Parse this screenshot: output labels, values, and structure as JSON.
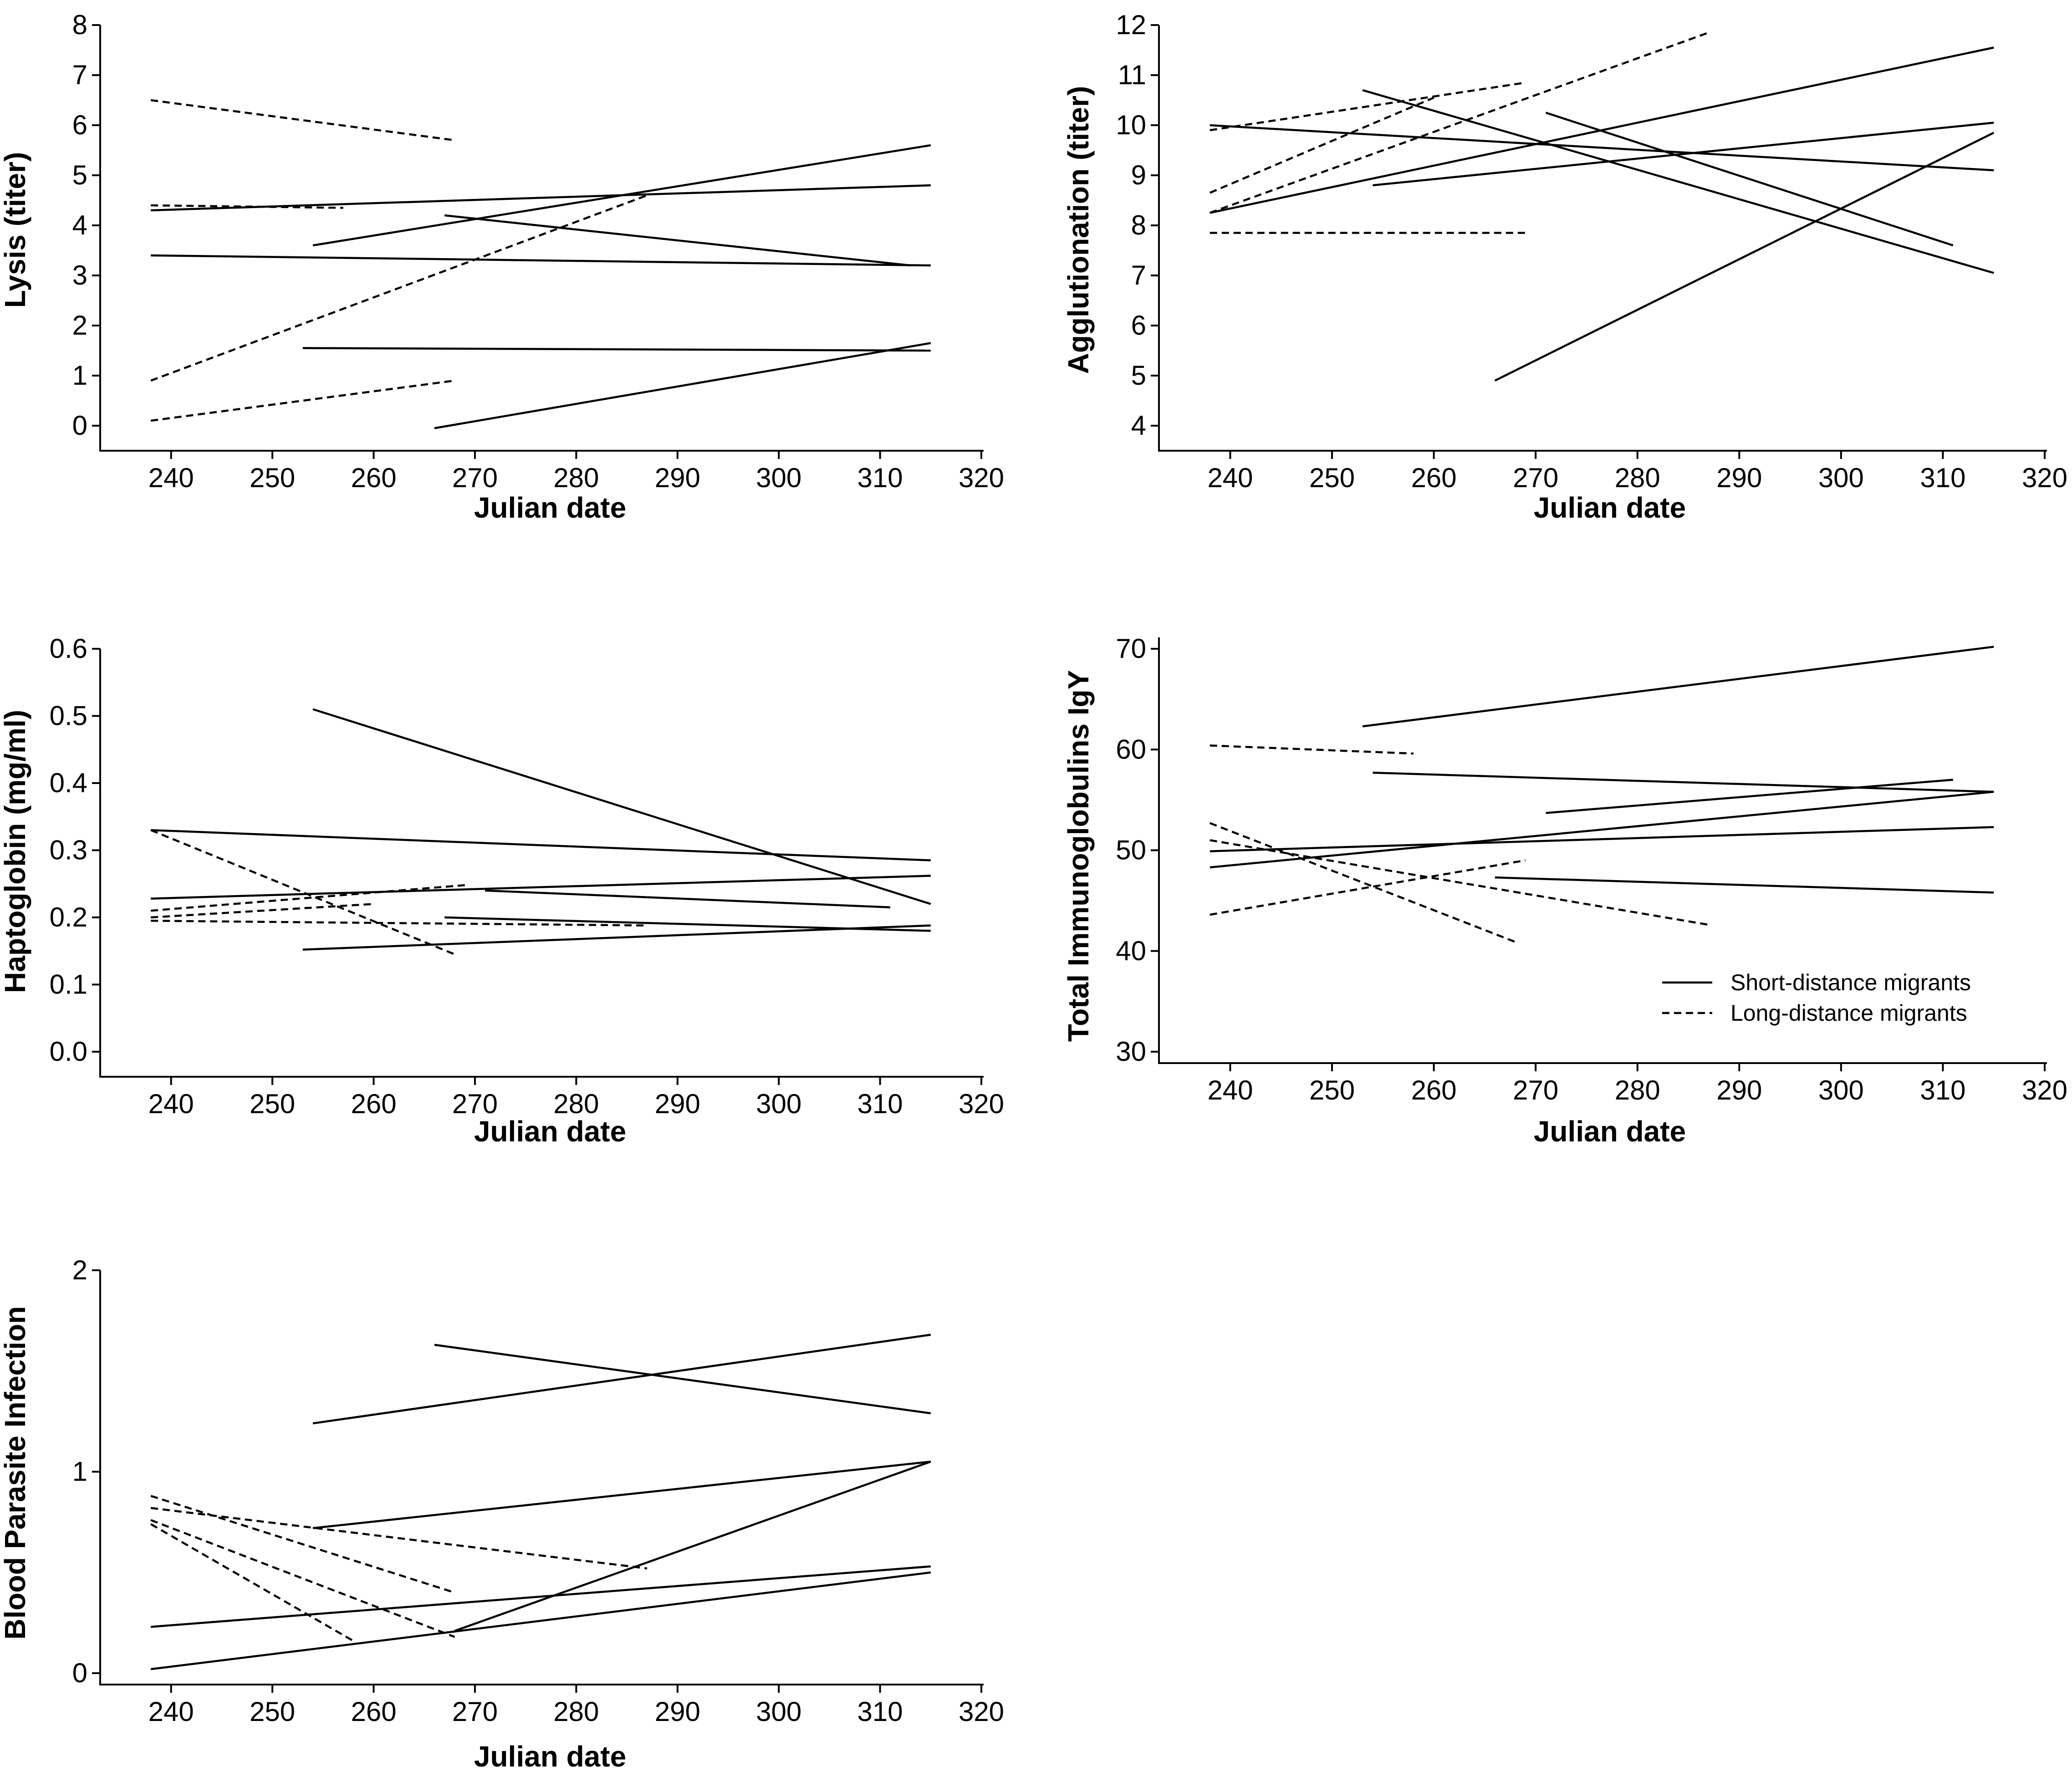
{
  "legend": {
    "solid_label": "Short-distance migrants",
    "dashed_label": "Long-distance migrants"
  },
  "chart_data": [
    {
      "type": "line",
      "id": "lysis",
      "xlabel": "Julian date",
      "ylabel": "Lysis (titer)",
      "xlim": [
        233,
        320
      ],
      "ylim": [
        0,
        8
      ],
      "xticks": [
        240,
        250,
        260,
        270,
        280,
        290,
        300,
        310,
        320
      ],
      "yticks": [
        0,
        1,
        2,
        3,
        4,
        5,
        6,
        7,
        8
      ],
      "ytick_labels": [
        "0",
        "1",
        "2",
        "3",
        "4",
        "5",
        "6",
        "7",
        "8"
      ],
      "series": [
        {
          "name": "Short-distance migrants",
          "style": "solid",
          "x": [
            238,
            315
          ],
          "y": [
            4.3,
            4.8
          ]
        },
        {
          "name": "Short-distance migrants",
          "style": "solid",
          "x": [
            238,
            315
          ],
          "y": [
            3.4,
            3.2
          ]
        },
        {
          "name": "Short-distance migrants",
          "style": "solid",
          "x": [
            254,
            315
          ],
          "y": [
            3.6,
            5.6
          ]
        },
        {
          "name": "Short-distance migrants",
          "style": "solid",
          "x": [
            267,
            313
          ],
          "y": [
            4.2,
            3.2
          ]
        },
        {
          "name": "Short-distance migrants",
          "style": "solid",
          "x": [
            253,
            315
          ],
          "y": [
            1.55,
            1.5
          ]
        },
        {
          "name": "Short-distance migrants",
          "style": "solid",
          "x": [
            266,
            315
          ],
          "y": [
            -0.05,
            1.65
          ]
        },
        {
          "name": "Long-distance migrants",
          "style": "dashed",
          "x": [
            238,
            268
          ],
          "y": [
            6.5,
            5.7
          ]
        },
        {
          "name": "Long-distance migrants",
          "style": "dashed",
          "x": [
            238,
            257
          ],
          "y": [
            4.4,
            4.35
          ]
        },
        {
          "name": "Long-distance migrants",
          "style": "dashed",
          "x": [
            238,
            287
          ],
          "y": [
            0.9,
            4.6
          ]
        },
        {
          "name": "Long-distance migrants",
          "style": "dashed",
          "x": [
            238,
            268
          ],
          "y": [
            0.1,
            0.9
          ]
        }
      ]
    },
    {
      "type": "line",
      "id": "agglutination",
      "xlabel": "Julian date",
      "ylabel": "Agglutionation (titer)",
      "xlim": [
        233,
        320
      ],
      "ylim": [
        4,
        12
      ],
      "xticks": [
        240,
        250,
        260,
        270,
        280,
        290,
        300,
        310,
        320
      ],
      "yticks": [
        4,
        5,
        6,
        7,
        8,
        9,
        10,
        11,
        12
      ],
      "ytick_labels": [
        "4",
        "5",
        "6",
        "7",
        "8",
        "9",
        "10",
        "11",
        "12"
      ],
      "series": [
        {
          "name": "Short-distance migrants",
          "style": "solid",
          "x": [
            238,
            315
          ],
          "y": [
            10.0,
            9.1
          ]
        },
        {
          "name": "Short-distance migrants",
          "style": "solid",
          "x": [
            238,
            315
          ],
          "y": [
            8.25,
            11.55
          ]
        },
        {
          "name": "Short-distance migrants",
          "style": "solid",
          "x": [
            254,
            315
          ],
          "y": [
            8.8,
            10.05
          ]
        },
        {
          "name": "Short-distance migrants",
          "style": "solid",
          "x": [
            253,
            315
          ],
          "y": [
            10.7,
            7.05
          ]
        },
        {
          "name": "Short-distance migrants",
          "style": "solid",
          "x": [
            271,
            311
          ],
          "y": [
            10.25,
            7.6
          ]
        },
        {
          "name": "Short-distance migrants",
          "style": "solid",
          "x": [
            266,
            315
          ],
          "y": [
            4.9,
            9.85
          ]
        },
        {
          "name": "Long-distance migrants",
          "style": "dashed",
          "x": [
            238,
            287
          ],
          "y": [
            8.25,
            11.85
          ]
        },
        {
          "name": "Long-distance migrants",
          "style": "dashed",
          "x": [
            238,
            269
          ],
          "y": [
            9.9,
            10.85
          ]
        },
        {
          "name": "Long-distance migrants",
          "style": "dashed",
          "x": [
            238,
            260
          ],
          "y": [
            8.65,
            10.55
          ]
        },
        {
          "name": "Long-distance migrants",
          "style": "dashed",
          "x": [
            238,
            269
          ],
          "y": [
            7.85,
            7.85
          ]
        }
      ]
    },
    {
      "type": "line",
      "id": "haptoglobin",
      "xlabel": "Julian date",
      "ylabel": "Haptoglobin (mg/ml)",
      "xlim": [
        233,
        320
      ],
      "ylim": [
        0,
        0.6
      ],
      "xticks": [
        240,
        250,
        260,
        270,
        280,
        290,
        300,
        310,
        320
      ],
      "yticks": [
        0,
        0.1,
        0.2,
        0.3,
        0.4,
        0.5,
        0.6
      ],
      "ytick_labels": [
        "0.0",
        "0.1",
        "0.2",
        "0.3",
        "0.4",
        "0.5",
        "0.6"
      ],
      "series": [
        {
          "name": "Short-distance migrants",
          "style": "solid",
          "x": [
            254,
            315
          ],
          "y": [
            0.51,
            0.22
          ]
        },
        {
          "name": "Short-distance migrants",
          "style": "solid",
          "x": [
            238,
            315
          ],
          "y": [
            0.33,
            0.285
          ]
        },
        {
          "name": "Short-distance migrants",
          "style": "solid",
          "x": [
            238,
            315
          ],
          "y": [
            0.228,
            0.262
          ]
        },
        {
          "name": "Short-distance migrants",
          "style": "solid",
          "x": [
            271,
            311
          ],
          "y": [
            0.24,
            0.215
          ]
        },
        {
          "name": "Short-distance migrants",
          "style": "solid",
          "x": [
            267,
            315
          ],
          "y": [
            0.2,
            0.18
          ]
        },
        {
          "name": "Short-distance migrants",
          "style": "solid",
          "x": [
            253,
            315
          ],
          "y": [
            0.152,
            0.188
          ]
        },
        {
          "name": "Long-distance migrants",
          "style": "dashed",
          "x": [
            238,
            268
          ],
          "y": [
            0.33,
            0.145
          ]
        },
        {
          "name": "Long-distance migrants",
          "style": "dashed",
          "x": [
            238,
            269
          ],
          "y": [
            0.21,
            0.248
          ]
        },
        {
          "name": "Long-distance migrants",
          "style": "dashed",
          "x": [
            238,
            260
          ],
          "y": [
            0.2,
            0.22
          ]
        },
        {
          "name": "Long-distance migrants",
          "style": "dashed",
          "x": [
            238,
            287
          ],
          "y": [
            0.195,
            0.188
          ]
        }
      ]
    },
    {
      "type": "line",
      "id": "igy",
      "xlabel": "Julian date",
      "ylabel": "Total Immunoglobulins IgY",
      "xlim": [
        233,
        320
      ],
      "ylim": [
        30,
        70
      ],
      "xticks": [
        240,
        250,
        260,
        270,
        280,
        290,
        300,
        310,
        320
      ],
      "yticks": [
        30,
        40,
        50,
        60,
        70
      ],
      "ytick_labels": [
        "30",
        "40",
        "50",
        "60",
        "70"
      ],
      "series": [
        {
          "name": "Short-distance migrants",
          "style": "solid",
          "x": [
            253,
            315
          ],
          "y": [
            62.3,
            70.2
          ]
        },
        {
          "name": "Short-distance migrants",
          "style": "solid",
          "x": [
            254,
            315
          ],
          "y": [
            57.7,
            55.8
          ]
        },
        {
          "name": "Short-distance migrants",
          "style": "solid",
          "x": [
            271,
            311
          ],
          "y": [
            53.7,
            57.0
          ]
        },
        {
          "name": "Short-distance migrants",
          "style": "solid",
          "x": [
            238,
            315
          ],
          "y": [
            48.3,
            55.8
          ]
        },
        {
          "name": "Short-distance migrants",
          "style": "solid",
          "x": [
            238,
            315
          ],
          "y": [
            49.9,
            52.3
          ]
        },
        {
          "name": "Short-distance migrants",
          "style": "solid",
          "x": [
            266,
            315
          ],
          "y": [
            47.3,
            45.8
          ]
        },
        {
          "name": "Long-distance migrants",
          "style": "dashed",
          "x": [
            238,
            258
          ],
          "y": [
            60.4,
            59.6
          ]
        },
        {
          "name": "Long-distance migrants",
          "style": "dashed",
          "x": [
            238,
            268
          ],
          "y": [
            52.7,
            40.9
          ]
        },
        {
          "name": "Long-distance migrants",
          "style": "dashed",
          "x": [
            238,
            287
          ],
          "y": [
            51.0,
            42.6
          ]
        },
        {
          "name": "Long-distance migrants",
          "style": "dashed",
          "x": [
            238,
            269
          ],
          "y": [
            43.6,
            49.0
          ]
        }
      ]
    },
    {
      "type": "line",
      "id": "parasite",
      "xlabel": "Julian date",
      "ylabel": "Blood Parasite Infection",
      "xlim": [
        233,
        320
      ],
      "ylim": [
        0,
        2
      ],
      "xticks": [
        240,
        250,
        260,
        270,
        280,
        290,
        300,
        310,
        320
      ],
      "yticks": [
        0,
        1,
        2
      ],
      "ytick_labels": [
        "0",
        "1",
        "2"
      ],
      "series": [
        {
          "name": "Short-distance migrants",
          "style": "solid",
          "x": [
            254,
            315
          ],
          "y": [
            1.24,
            1.68
          ]
        },
        {
          "name": "Short-distance migrants",
          "style": "solid",
          "x": [
            266,
            315
          ],
          "y": [
            1.63,
            1.29
          ]
        },
        {
          "name": "Short-distance migrants",
          "style": "solid",
          "x": [
            254,
            315
          ],
          "y": [
            0.72,
            1.05
          ]
        },
        {
          "name": "Short-distance migrants",
          "style": "solid",
          "x": [
            268,
            315
          ],
          "y": [
            0.21,
            1.05
          ]
        },
        {
          "name": "Short-distance migrants",
          "style": "solid",
          "x": [
            238,
            315
          ],
          "y": [
            0.23,
            0.53
          ]
        },
        {
          "name": "Short-distance migrants",
          "style": "solid",
          "x": [
            238,
            315
          ],
          "y": [
            0.02,
            0.5
          ]
        },
        {
          "name": "Long-distance migrants",
          "style": "dashed",
          "x": [
            238,
            287
          ],
          "y": [
            0.82,
            0.52
          ]
        },
        {
          "name": "Long-distance migrants",
          "style": "dashed",
          "x": [
            238,
            268
          ],
          "y": [
            0.88,
            0.4
          ]
        },
        {
          "name": "Long-distance migrants",
          "style": "dashed",
          "x": [
            238,
            268
          ],
          "y": [
            0.76,
            0.18
          ]
        },
        {
          "name": "Long-distance migrants",
          "style": "dashed",
          "x": [
            238,
            258
          ],
          "y": [
            0.74,
            0.16
          ]
        }
      ]
    }
  ]
}
